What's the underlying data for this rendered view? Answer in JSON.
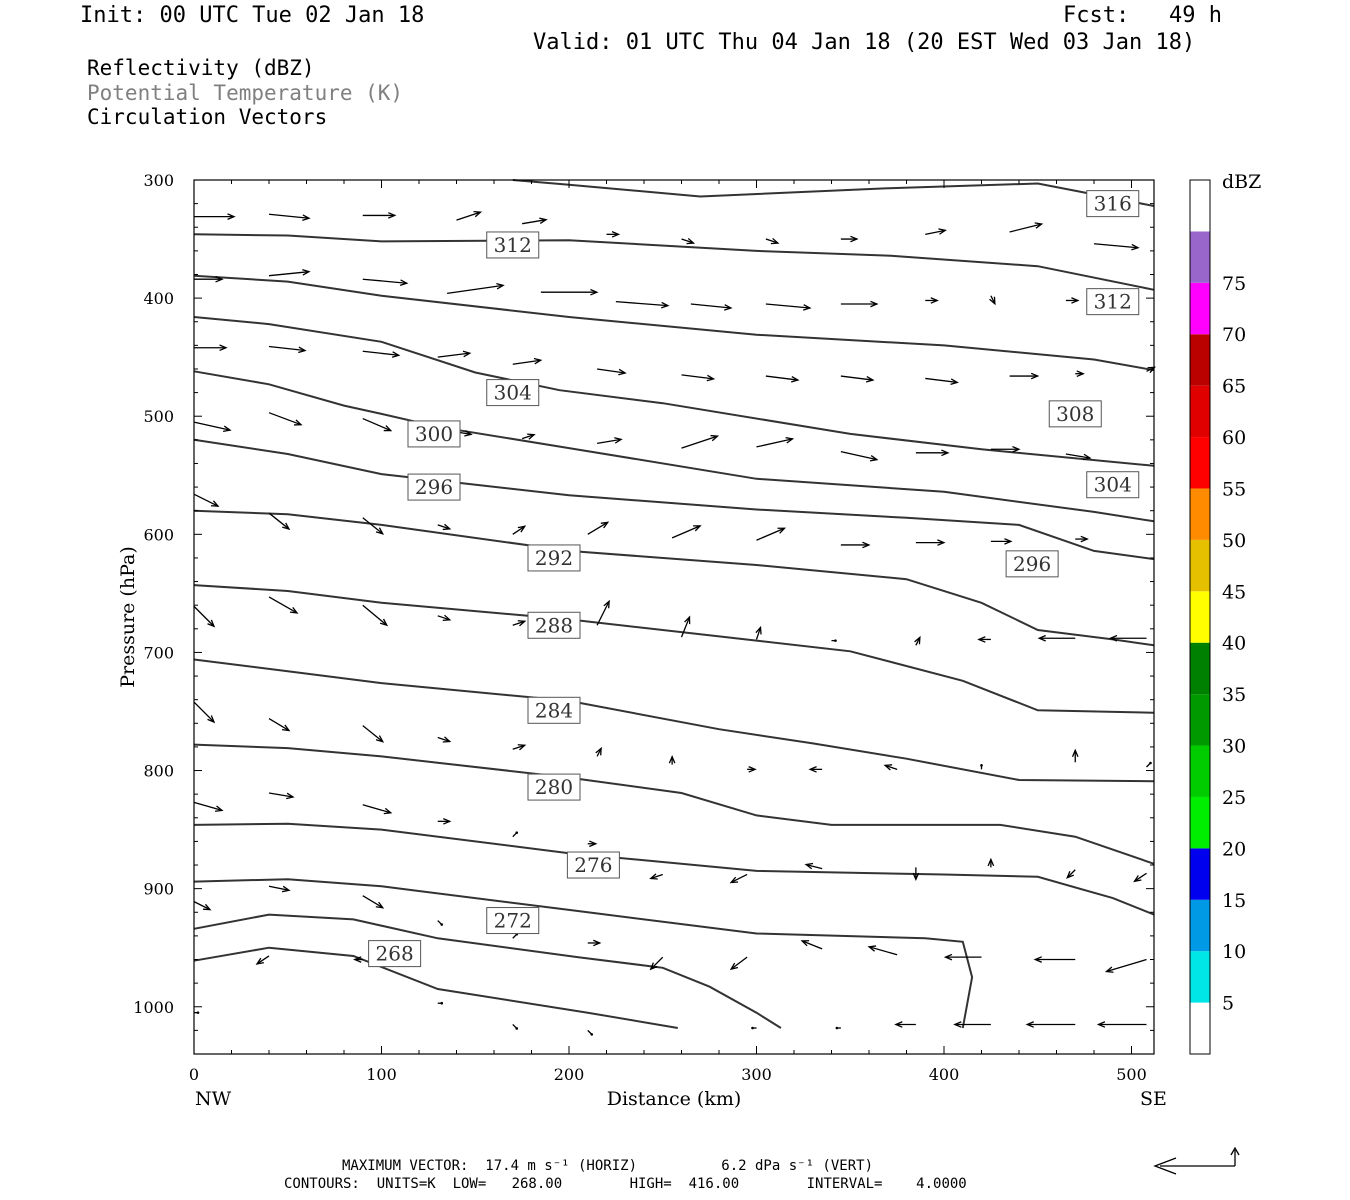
{
  "header": {
    "init": "Init: 00 UTC Tue 02 Jan 18",
    "fcst": "Fcst:   49 h",
    "valid": "Valid: 01 UTC Thu 04 Jan 18 (20 EST Wed 03 Jan 18)"
  },
  "legend": {
    "line1": "Reflectivity (dBZ)",
    "line2": "Potential Temperature (K)",
    "line3": "Circulation Vectors",
    "line2_color": "#808080"
  },
  "footer": {
    "line1": "MAXIMUM VECTOR:  17.4 m s⁻¹ (HORIZ)          6.2 dPa s⁻¹ (VERT)",
    "line2": "CONTOURS:  UNITS=K  LOW=   268.00        HIGH=  416.00        INTERVAL=    4.0000"
  },
  "chart_data": {
    "type": "line",
    "xlabel": "Distance (km)",
    "ylabel": "Pressure (hPa)",
    "xlim": [
      0,
      512
    ],
    "ylim": [
      1040,
      300
    ],
    "x_ticks": [
      0,
      100,
      200,
      300,
      400,
      500
    ],
    "y_ticks": [
      300,
      400,
      500,
      600,
      700,
      800,
      900,
      1000
    ],
    "x_end_labels": {
      "left": "NW",
      "right": "SE"
    },
    "contour_color": "#333333",
    "series": [
      {
        "name": "268",
        "points": [
          [
            0,
            961
          ],
          [
            40,
            950
          ],
          [
            85,
            957
          ],
          [
            130,
            985
          ],
          [
            210,
            1005
          ],
          [
            258,
            1018
          ]
        ]
      },
      {
        "name": "272",
        "points": [
          [
            0,
            934
          ],
          [
            40,
            922
          ],
          [
            85,
            926
          ],
          [
            130,
            942
          ],
          [
            205,
            958
          ],
          [
            250,
            967
          ],
          [
            275,
            983
          ],
          [
            300,
            1005
          ],
          [
            313,
            1018
          ]
        ]
      },
      {
        "name": "276",
        "points": [
          [
            0,
            894
          ],
          [
            50,
            892
          ],
          [
            100,
            898
          ],
          [
            200,
            918
          ],
          [
            300,
            938
          ],
          [
            390,
            942
          ],
          [
            410,
            945
          ],
          [
            415,
            975
          ],
          [
            410,
            1018
          ]
        ]
      },
      {
        "name": "280",
        "points": [
          [
            0,
            846
          ],
          [
            50,
            845
          ],
          [
            100,
            850
          ],
          [
            200,
            870
          ],
          [
            300,
            885
          ],
          [
            400,
            888
          ],
          [
            450,
            890
          ],
          [
            490,
            908
          ],
          [
            512,
            922
          ]
        ]
      },
      {
        "name": "284",
        "points": [
          [
            0,
            778
          ],
          [
            50,
            781
          ],
          [
            100,
            788
          ],
          [
            200,
            806
          ],
          [
            260,
            819
          ],
          [
            300,
            838
          ],
          [
            340,
            846
          ],
          [
            430,
            846
          ],
          [
            470,
            856
          ],
          [
            512,
            879
          ]
        ]
      },
      {
        "name": "288",
        "points": [
          [
            0,
            706
          ],
          [
            50,
            716
          ],
          [
            100,
            726
          ],
          [
            200,
            741
          ],
          [
            280,
            765
          ],
          [
            330,
            777
          ],
          [
            380,
            790
          ],
          [
            440,
            808
          ],
          [
            512,
            809
          ]
        ]
      },
      {
        "name": "292",
        "points": [
          [
            0,
            643
          ],
          [
            50,
            648
          ],
          [
            100,
            658
          ],
          [
            200,
            672
          ],
          [
            300,
            690
          ],
          [
            350,
            699
          ],
          [
            410,
            724
          ],
          [
            450,
            749
          ],
          [
            512,
            751
          ]
        ]
      },
      {
        "name": "296",
        "points": [
          [
            0,
            580
          ],
          [
            50,
            583
          ],
          [
            100,
            592
          ],
          [
            200,
            614
          ],
          [
            300,
            626
          ],
          [
            380,
            638
          ],
          [
            420,
            658
          ],
          [
            450,
            681
          ],
          [
            490,
            689
          ],
          [
            512,
            694
          ]
        ]
      },
      {
        "name": "300",
        "points": [
          [
            0,
            520
          ],
          [
            50,
            532
          ],
          [
            100,
            549
          ],
          [
            200,
            567
          ],
          [
            300,
            579
          ],
          [
            380,
            586
          ],
          [
            440,
            592
          ],
          [
            480,
            614
          ],
          [
            512,
            621
          ]
        ]
      },
      {
        "name": "304",
        "points": [
          [
            0,
            462
          ],
          [
            40,
            473
          ],
          [
            80,
            491
          ],
          [
            100,
            498
          ],
          [
            130,
            509
          ],
          [
            200,
            527
          ],
          [
            300,
            553
          ],
          [
            400,
            564
          ],
          [
            480,
            581
          ],
          [
            512,
            589
          ]
        ]
      },
      {
        "name": "308",
        "points": [
          [
            0,
            416
          ],
          [
            40,
            422
          ],
          [
            100,
            437
          ],
          [
            150,
            463
          ],
          [
            195,
            478
          ],
          [
            250,
            489
          ],
          [
            350,
            515
          ],
          [
            420,
            528
          ],
          [
            512,
            542
          ]
        ]
      },
      {
        "name": "312",
        "points": [
          [
            0,
            381
          ],
          [
            50,
            386
          ],
          [
            100,
            398
          ],
          [
            200,
            416
          ],
          [
            300,
            431
          ],
          [
            400,
            440
          ],
          [
            480,
            452
          ],
          [
            512,
            461
          ]
        ]
      },
      {
        "name": "312b",
        "points": [
          [
            0,
            346
          ],
          [
            50,
            347
          ],
          [
            100,
            352
          ],
          [
            200,
            351
          ],
          [
            300,
            360
          ],
          [
            370,
            364
          ],
          [
            450,
            373
          ],
          [
            512,
            393
          ]
        ]
      },
      {
        "name": "316",
        "points": [
          [
            170,
            300
          ],
          [
            200,
            304
          ],
          [
            270,
            314
          ],
          [
            370,
            307
          ],
          [
            450,
            303
          ],
          [
            512,
            322
          ]
        ]
      }
    ],
    "contour_labels": [
      {
        "text": "316",
        "x": 490,
        "y": 320
      },
      {
        "text": "312",
        "x": 170,
        "y": 355
      },
      {
        "text": "312",
        "x": 490,
        "y": 403
      },
      {
        "text": "304",
        "x": 170,
        "y": 480
      },
      {
        "text": "308",
        "x": 470,
        "y": 498
      },
      {
        "text": "300",
        "x": 128,
        "y": 515
      },
      {
        "text": "304",
        "x": 490,
        "y": 558
      },
      {
        "text": "296",
        "x": 128,
        "y": 560
      },
      {
        "text": "292",
        "x": 192,
        "y": 620
      },
      {
        "text": "296",
        "x": 447,
        "y": 625
      },
      {
        "text": "288",
        "x": 192,
        "y": 677
      },
      {
        "text": "284",
        "x": 192,
        "y": 749
      },
      {
        "text": "280",
        "x": 192,
        "y": 814
      },
      {
        "text": "276",
        "x": 213,
        "y": 880
      },
      {
        "text": "272",
        "x": 170,
        "y": 927
      },
      {
        "text": "268",
        "x": 107,
        "y": 955
      }
    ],
    "vectors": [
      [
        0,
        331,
        10,
        0
      ],
      [
        40,
        329,
        10,
        1
      ],
      [
        90,
        330,
        8,
        0
      ],
      [
        140,
        334,
        6,
        -2
      ],
      [
        175,
        337,
        6,
        -1
      ],
      [
        220,
        346,
        3,
        0
      ],
      [
        260,
        350,
        3,
        1
      ],
      [
        305,
        350,
        3,
        1
      ],
      [
        345,
        350,
        4,
        0
      ],
      [
        390,
        346,
        5,
        -1
      ],
      [
        435,
        344,
        8,
        -2
      ],
      [
        480,
        354,
        11,
        1
      ],
      [
        0,
        384,
        7,
        0
      ],
      [
        40,
        381,
        10,
        -1
      ],
      [
        90,
        384,
        11,
        1
      ],
      [
        135,
        396,
        14,
        -2
      ],
      [
        185,
        395,
        14,
        0
      ],
      [
        225,
        403,
        13,
        1
      ],
      [
        265,
        405,
        10,
        1
      ],
      [
        305,
        405,
        11,
        1
      ],
      [
        345,
        405,
        9,
        0
      ],
      [
        390,
        402,
        3,
        0
      ],
      [
        425,
        398,
        1,
        2
      ],
      [
        465,
        402,
        3,
        0
      ],
      [
        0,
        442,
        8,
        0
      ],
      [
        40,
        441,
        9,
        1
      ],
      [
        90,
        445,
        9,
        1
      ],
      [
        130,
        450,
        8,
        -1
      ],
      [
        170,
        456,
        7,
        -1
      ],
      [
        215,
        460,
        7,
        1
      ],
      [
        260,
        465,
        8,
        1
      ],
      [
        305,
        466,
        8,
        1
      ],
      [
        345,
        466,
        8,
        1
      ],
      [
        390,
        468,
        8,
        1
      ],
      [
        435,
        466,
        7,
        0
      ],
      [
        470,
        464,
        2,
        0
      ],
      [
        508,
        462,
        2,
        -1
      ],
      [
        0,
        505,
        9,
        2
      ],
      [
        40,
        497,
        8,
        3
      ],
      [
        90,
        502,
        7,
        3
      ],
      [
        135,
        512,
        6,
        1
      ],
      [
        175,
        519,
        3,
        -1
      ],
      [
        215,
        523,
        6,
        -1
      ],
      [
        260,
        527,
        9,
        -3
      ],
      [
        300,
        526,
        9,
        -2
      ],
      [
        345,
        530,
        9,
        2
      ],
      [
        385,
        531,
        8,
        0
      ],
      [
        425,
        528,
        7,
        0
      ],
      [
        465,
        532,
        6,
        1
      ],
      [
        0,
        566,
        6,
        3
      ],
      [
        40,
        582,
        5,
        4
      ],
      [
        90,
        586,
        5,
        4
      ],
      [
        130,
        592,
        3,
        1
      ],
      [
        170,
        600,
        3,
        -2
      ],
      [
        210,
        600,
        5,
        -3
      ],
      [
        255,
        603,
        7,
        -3
      ],
      [
        300,
        605,
        7,
        -3
      ],
      [
        345,
        609,
        7,
        0
      ],
      [
        385,
        607,
        7,
        0
      ],
      [
        425,
        606,
        5,
        0
      ],
      [
        470,
        604,
        3,
        0
      ],
      [
        0,
        661,
        5,
        5
      ],
      [
        40,
        653,
        7,
        4
      ],
      [
        90,
        660,
        6,
        5
      ],
      [
        130,
        669,
        3,
        1
      ],
      [
        170,
        677,
        3,
        -1
      ],
      [
        215,
        677,
        3,
        -6
      ],
      [
        260,
        687,
        2,
        -5
      ],
      [
        300,
        689,
        1,
        -3
      ],
      [
        340,
        690,
        1,
        0
      ],
      [
        385,
        694,
        1,
        -2
      ],
      [
        425,
        689,
        -3,
        0
      ],
      [
        470,
        688,
        -9,
        0
      ],
      [
        508,
        688,
        -9,
        0
      ],
      [
        0,
        742,
        5,
        5
      ],
      [
        40,
        756,
        5,
        3
      ],
      [
        90,
        762,
        5,
        4
      ],
      [
        130,
        772,
        3,
        1
      ],
      [
        170,
        782,
        3,
        -1
      ],
      [
        215,
        788,
        1,
        -2
      ],
      [
        255,
        795,
        0,
        -2
      ],
      [
        295,
        799,
        2,
        0
      ],
      [
        335,
        799,
        -3,
        0
      ],
      [
        375,
        799,
        -3,
        -1
      ],
      [
        420,
        799,
        0,
        -1
      ],
      [
        470,
        793,
        0,
        -3
      ],
      [
        508,
        797,
        1,
        -1
      ],
      [
        0,
        827,
        7,
        2
      ],
      [
        40,
        819,
        6,
        1
      ],
      [
        90,
        829,
        7,
        2
      ],
      [
        130,
        843,
        3,
        0
      ],
      [
        170,
        856,
        1,
        -1
      ],
      [
        210,
        862,
        2,
        0
      ],
      [
        250,
        888,
        -3,
        1
      ],
      [
        295,
        888,
        -4,
        2
      ],
      [
        335,
        883,
        -4,
        -1
      ],
      [
        385,
        882,
        0,
        3
      ],
      [
        425,
        882,
        0,
        -2
      ],
      [
        470,
        884,
        -2,
        2
      ],
      [
        508,
        887,
        -3,
        2
      ],
      [
        0,
        911,
        4,
        2
      ],
      [
        40,
        898,
        5,
        1
      ],
      [
        90,
        906,
        5,
        3
      ],
      [
        130,
        927,
        1,
        1
      ],
      [
        170,
        942,
        1,
        -1
      ],
      [
        210,
        946,
        3,
        0
      ],
      [
        250,
        958,
        -3,
        3
      ],
      [
        295,
        958,
        -4,
        3
      ],
      [
        335,
        951,
        -5,
        -2
      ],
      [
        375,
        956,
        -7,
        -2
      ],
      [
        420,
        958,
        -9,
        0
      ],
      [
        470,
        960,
        -10,
        0
      ],
      [
        508,
        960,
        -10,
        3
      ],
      [
        0,
        1005,
        1,
        0
      ],
      [
        40,
        957,
        -3,
        2
      ],
      [
        90,
        960,
        -2,
        0
      ],
      [
        130,
        997,
        1,
        0
      ],
      [
        170,
        1015,
        1,
        1
      ],
      [
        210,
        1020,
        1,
        1
      ],
      [
        300,
        1018,
        -1,
        0
      ],
      [
        345,
        1018,
        -1,
        0
      ],
      [
        385,
        1015,
        -5,
        0
      ],
      [
        425,
        1015,
        -9,
        0
      ],
      [
        470,
        1015,
        -12,
        0
      ],
      [
        508,
        1015,
        -12,
        0
      ]
    ],
    "colorbar": {
      "title": "dBZ",
      "labels": [
        "5",
        "10",
        "15",
        "20",
        "25",
        "30",
        "35",
        "40",
        "45",
        "50",
        "55",
        "60",
        "65",
        "70",
        "75"
      ],
      "colors": [
        "#ffffff",
        "#00e5e5",
        "#0099e5",
        "#0000ee",
        "#00ee00",
        "#00cc00",
        "#009900",
        "#008000",
        "#ffff00",
        "#e5c000",
        "#ff8c00",
        "#ff0000",
        "#e00000",
        "#bb0000",
        "#ff00ff",
        "#9966cc",
        "#ffffff"
      ]
    },
    "max_vector_arrow": {
      "horiz": 17.4,
      "vert": 6.2
    }
  }
}
